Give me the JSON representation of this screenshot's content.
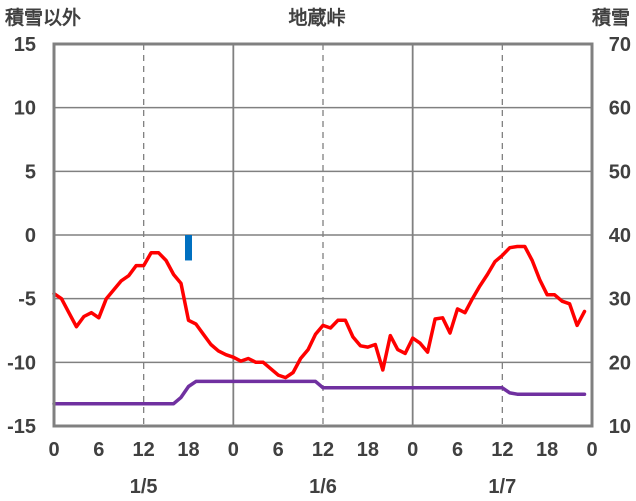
{
  "chart_data": {
    "type": "line",
    "title": "地蔵峠",
    "y_left_label": "積雪以外",
    "y_right_label": "積雪",
    "y_left_range": [
      -15,
      15
    ],
    "y_left_ticks": [
      "15",
      "10",
      "5",
      "0",
      "-5",
      "-10",
      "-15"
    ],
    "y_right_range": [
      10,
      70
    ],
    "y_right_ticks": [
      "70",
      "60",
      "50",
      "40",
      "30",
      "20",
      "10"
    ],
    "x_range_hours": [
      0,
      72
    ],
    "x_tick_labels": [
      "0",
      "6",
      "12",
      "18",
      "0",
      "6",
      "12",
      "18",
      "0",
      "6",
      "12",
      "18",
      "0"
    ],
    "date_labels": [
      "1/5",
      "1/6",
      "1/7"
    ],
    "grid": true,
    "colors": {
      "temperature": "#ff0000",
      "precipitation": "#0070c0",
      "snow_depth": "#7030a0",
      "axis": "#808080",
      "grid_dashed": "#808080"
    },
    "series": [
      {
        "axis": "left",
        "kind": "line",
        "x": [
          0,
          1,
          2,
          3,
          4,
          5,
          6,
          7,
          8,
          9,
          10,
          11,
          12,
          13,
          14,
          15,
          16,
          17,
          18,
          19,
          20,
          21,
          22,
          23,
          24,
          25,
          26,
          27,
          28,
          29,
          30,
          31,
          32,
          33,
          34,
          35,
          36,
          37,
          38,
          39,
          40,
          41,
          42,
          43,
          44,
          45,
          46,
          47,
          48,
          49,
          50,
          51,
          52,
          53,
          54,
          55,
          56,
          57,
          58,
          59,
          60,
          61,
          62,
          63,
          64,
          65,
          66,
          67,
          68,
          69,
          70,
          71
        ],
        "values": [
          -4.6,
          -5.0,
          -6.1,
          -7.2,
          -6.4,
          -6.1,
          -6.5,
          -5.0,
          -4.3,
          -3.6,
          -3.2,
          -2.4,
          -2.4,
          -1.4,
          -1.4,
          -2.0,
          -3.1,
          -3.8,
          -6.7,
          -7.0,
          -7.8,
          -8.6,
          -9.1,
          -9.4,
          -9.6,
          -9.9,
          -9.7,
          -10.0,
          -10.0,
          -10.5,
          -11.0,
          -11.2,
          -10.8,
          -9.7,
          -9.0,
          -7.8,
          -7.1,
          -7.3,
          -6.7,
          -6.7,
          -8.0,
          -8.7,
          -8.8,
          -8.6,
          -10.6,
          -7.9,
          -9.0,
          -9.3,
          -8.1,
          -8.5,
          -9.2,
          -6.6,
          -6.5,
          -7.7,
          -5.8,
          -6.1,
          -5.0,
          -4.0,
          -3.1,
          -2.1,
          -1.6,
          -1.0,
          -0.9,
          -0.9,
          -2.0,
          -3.5,
          -4.7,
          -4.7,
          -5.2,
          -5.4,
          -7.1,
          -6.0
        ]
      },
      {
        "axis": "left",
        "kind": "bar",
        "x": [
          18
        ],
        "values": [
          -2.0
        ]
      },
      {
        "axis": "right",
        "kind": "line",
        "x": [
          0,
          16,
          17,
          18,
          19,
          20,
          21,
          35,
          36,
          37,
          60,
          61,
          62,
          71
        ],
        "values": [
          13.5,
          13.5,
          14.5,
          16.2,
          17.0,
          17.0,
          17.0,
          17.0,
          16.0,
          16.0,
          16.0,
          15.2,
          15.0,
          15.0
        ]
      }
    ]
  }
}
